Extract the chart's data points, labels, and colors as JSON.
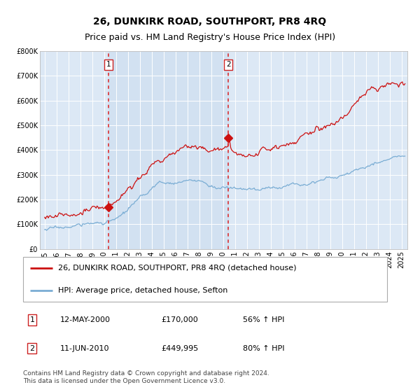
{
  "title": "26, DUNKIRK ROAD, SOUTHPORT, PR8 4RQ",
  "subtitle": "Price paid vs. HM Land Registry's House Price Index (HPI)",
  "background_color": "#ffffff",
  "plot_bg_color": "#dce8f5",
  "grid_color": "#ffffff",
  "red_line_color": "#cc1111",
  "blue_line_color": "#7aadd4",
  "sale1_date_num": 2000.37,
  "sale1_price": 170000,
  "sale2_date_num": 2010.45,
  "sale2_price": 449995,
  "ylim": [
    0,
    800000
  ],
  "xlim": [
    1994.6,
    2025.5
  ],
  "yticks": [
    0,
    100000,
    200000,
    300000,
    400000,
    500000,
    600000,
    700000,
    800000
  ],
  "ytick_labels": [
    "£0",
    "£100K",
    "£200K",
    "£300K",
    "£400K",
    "£500K",
    "£600K",
    "£700K",
    "£800K"
  ],
  "legend_line1": "26, DUNKIRK ROAD, SOUTHPORT, PR8 4RQ (detached house)",
  "legend_line2": "HPI: Average price, detached house, Sefton",
  "annotation1_date": "12-MAY-2000",
  "annotation1_price": "£170,000",
  "annotation1_hpi": "56% ↑ HPI",
  "annotation2_date": "11-JUN-2010",
  "annotation2_price": "£449,995",
  "annotation2_hpi": "80% ↑ HPI",
  "footer": "Contains HM Land Registry data © Crown copyright and database right 2024.\nThis data is licensed under the Open Government Licence v3.0.",
  "title_fontsize": 10,
  "subtitle_fontsize": 9,
  "tick_fontsize": 7,
  "legend_fontsize": 8,
  "annotation_fontsize": 8,
  "footer_fontsize": 6.5
}
